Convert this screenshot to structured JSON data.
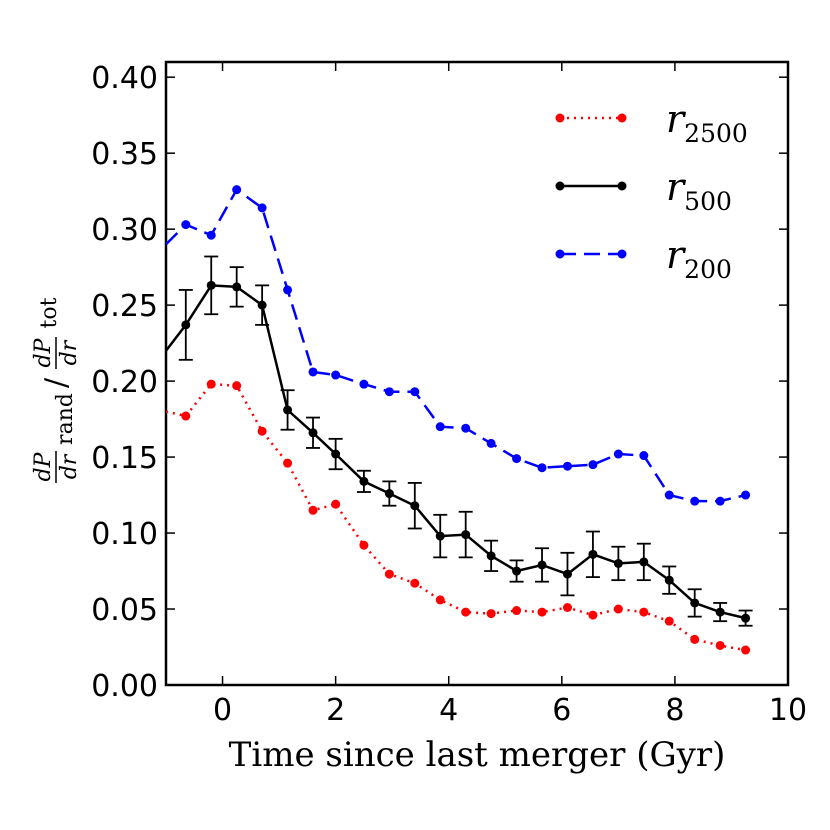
{
  "chart_data": {
    "type": "line",
    "title": "",
    "xlabel": "Time since last merger (Gyr)",
    "ylabel": "dP/dr rand / dP/dr tot",
    "xlim": [
      -1,
      10
    ],
    "ylim": [
      0,
      0.41
    ],
    "xticks": [
      0,
      2,
      4,
      6,
      8,
      10
    ],
    "xtick_labels": [
      "0",
      "2",
      "4",
      "6",
      "8",
      "10"
    ],
    "yticks": [
      0,
      0.05,
      0.1,
      0.15,
      0.2,
      0.25,
      0.3,
      0.35,
      0.4
    ],
    "ytick_labels": [
      "0.00",
      "0.05",
      "0.10",
      "0.15",
      "0.20",
      "0.25",
      "0.30",
      "0.35",
      "0.40"
    ],
    "legend_position": "top-right",
    "series": [
      {
        "name": "r2500",
        "label_main": "r",
        "label_sub": "2500",
        "color": "#ff0000",
        "style": "dotted",
        "line_start": [
          -1,
          0.18
        ],
        "x": [
          -0.65,
          -0.2,
          0.25,
          0.7,
          1.15,
          1.6,
          2.0,
          2.5,
          2.95,
          3.4,
          3.85,
          4.3,
          4.75,
          5.2,
          5.65,
          6.1,
          6.55,
          7.0,
          7.45,
          7.9,
          8.35,
          8.8,
          9.25
        ],
        "y": [
          0.177,
          0.198,
          0.197,
          0.167,
          0.146,
          0.115,
          0.119,
          0.092,
          0.073,
          0.067,
          0.056,
          0.048,
          0.047,
          0.049,
          0.048,
          0.051,
          0.046,
          0.05,
          0.048,
          0.042,
          0.03,
          0.026,
          0.023
        ]
      },
      {
        "name": "r500",
        "label_main": "r",
        "label_sub": "500",
        "color": "#000000",
        "style": "solid",
        "line_start": [
          -1,
          0.22
        ],
        "x": [
          -0.65,
          -0.2,
          0.25,
          0.7,
          1.15,
          1.6,
          2.0,
          2.5,
          2.95,
          3.4,
          3.85,
          4.3,
          4.75,
          5.2,
          5.65,
          6.1,
          6.55,
          7.0,
          7.45,
          7.9,
          8.35,
          8.8,
          9.25
        ],
        "y": [
          0.237,
          0.263,
          0.262,
          0.25,
          0.181,
          0.166,
          0.152,
          0.134,
          0.126,
          0.118,
          0.098,
          0.099,
          0.085,
          0.075,
          0.079,
          0.073,
          0.086,
          0.08,
          0.081,
          0.069,
          0.054,
          0.048,
          0.044
        ],
        "yerr": [
          0.023,
          0.019,
          0.013,
          0.013,
          0.013,
          0.01,
          0.01,
          0.007,
          0.008,
          0.015,
          0.014,
          0.015,
          0.01,
          0.007,
          0.011,
          0.014,
          0.015,
          0.011,
          0.012,
          0.009,
          0.009,
          0.006,
          0.005
        ]
      },
      {
        "name": "r200",
        "label_main": "r",
        "label_sub": "200",
        "color": "#0000ff",
        "style": "dashed",
        "line_start": [
          -1,
          0.29
        ],
        "x": [
          -0.65,
          -0.2,
          0.25,
          0.7,
          1.15,
          1.6,
          2.0,
          2.5,
          2.95,
          3.4,
          3.85,
          4.3,
          4.75,
          5.2,
          5.65,
          6.1,
          6.55,
          7.0,
          7.45,
          7.9,
          8.35,
          8.8,
          9.25
        ],
        "y": [
          0.303,
          0.296,
          0.326,
          0.314,
          0.26,
          0.206,
          0.204,
          0.198,
          0.193,
          0.193,
          0.17,
          0.169,
          0.159,
          0.149,
          0.143,
          0.144,
          0.145,
          0.152,
          0.151,
          0.125,
          0.121,
          0.121,
          0.125
        ]
      }
    ]
  }
}
